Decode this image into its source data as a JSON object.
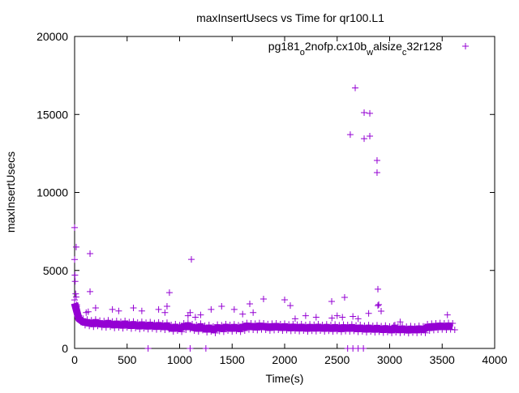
{
  "chart_data": {
    "type": "scatter",
    "title": "maxInsertUsecs vs Time for qr100.L1",
    "xlabel": "Time(s)",
    "ylabel": "maxInsertUsecs",
    "xlim": [
      0,
      4000
    ],
    "ylim": [
      0,
      20000
    ],
    "xticks": [
      0,
      500,
      1000,
      1500,
      2000,
      2500,
      3000,
      3500,
      4000
    ],
    "yticks": [
      0,
      5000,
      10000,
      15000,
      20000
    ],
    "grid": false,
    "legend_position": "top-right",
    "series": [
      {
        "name": "pg181_o2nofp.cx10b_walsize_c32r128",
        "legend_parts": [
          "pg181",
          "o",
          "2nofp.cx10b",
          "w",
          "alsize",
          "c",
          "32r128"
        ],
        "color": "#9400d3",
        "marker": "plus",
        "baseline": {
          "x_start": 0,
          "x_step": 40,
          "y": [
            2900,
            1900,
            1700,
            1650,
            1600,
            1650,
            1580,
            1550,
            1600,
            1520,
            1550,
            1500,
            1560,
            1480,
            1520,
            1450,
            1500,
            1440,
            1480,
            1420,
            1460,
            1400,
            1440,
            1300,
            1350,
            1280,
            1400,
            1450,
            1350,
            1300,
            1380,
            1250,
            1300,
            1200,
            1320,
            1280,
            1350,
            1300,
            1340,
            1280,
            1350,
            1420,
            1400,
            1380,
            1420,
            1400,
            1360,
            1380,
            1400,
            1350,
            1380,
            1330,
            1360,
            1320,
            1350,
            1300,
            1340,
            1310,
            1350,
            1300,
            1340,
            1290,
            1330,
            1280,
            1320,
            1300,
            1330,
            1270,
            1300,
            1250,
            1290,
            1240,
            1280,
            1220,
            1260,
            1200,
            1250,
            1210,
            1240,
            1190,
            1230,
            1200,
            1240,
            1210,
            1350,
            1380,
            1400,
            1420,
            1400,
            1430,
            1400
          ]
        },
        "points": [
          [
            0,
            7750
          ],
          [
            15,
            6500
          ],
          [
            0,
            5700
          ],
          [
            5,
            4300
          ],
          [
            10,
            3500
          ],
          [
            15,
            3300
          ],
          [
            20,
            2800
          ],
          [
            3,
            4700
          ],
          [
            147,
            6080
          ],
          [
            1112,
            5710
          ],
          [
            147,
            3640
          ],
          [
            903,
            3580
          ],
          [
            2672,
            16700
          ],
          [
            2757,
            15120
          ],
          [
            2811,
            15070
          ],
          [
            2625,
            13710
          ],
          [
            2757,
            13450
          ],
          [
            2811,
            13610
          ],
          [
            2880,
            12050
          ],
          [
            2880,
            11270
          ],
          [
            2888,
            3800
          ],
          [
            2888,
            2750
          ],
          [
            2919,
            2390
          ],
          [
            2571,
            3270
          ],
          [
            1799,
            3170
          ],
          [
            2000,
            3120
          ],
          [
            2448,
            3010
          ],
          [
            1668,
            2860
          ],
          [
            2054,
            2750
          ],
          [
            2896,
            2810
          ],
          [
            110,
            2300
          ],
          [
            130,
            2350
          ],
          [
            200,
            2600
          ],
          [
            360,
            2500
          ],
          [
            420,
            2400
          ],
          [
            560,
            2600
          ],
          [
            640,
            2400
          ],
          [
            800,
            2500
          ],
          [
            860,
            2300
          ],
          [
            880,
            2700
          ],
          [
            1080,
            2100
          ],
          [
            1100,
            2300
          ],
          [
            1150,
            2000
          ],
          [
            1200,
            2150
          ],
          [
            1300,
            2500
          ],
          [
            1400,
            2700
          ],
          [
            1600,
            2200
          ],
          [
            1520,
            2500
          ],
          [
            1700,
            2300
          ],
          [
            2100,
            1900
          ],
          [
            2200,
            2100
          ],
          [
            2300,
            2000
          ],
          [
            2450,
            1950
          ],
          [
            2500,
            2100
          ],
          [
            2550,
            2000
          ],
          [
            2650,
            2050
          ],
          [
            2700,
            1900
          ],
          [
            2800,
            2250
          ],
          [
            3050,
            1500
          ],
          [
            3100,
            1700
          ],
          [
            3550,
            2150
          ],
          [
            700,
            0
          ],
          [
            1100,
            0
          ],
          [
            1250,
            0
          ],
          [
            2600,
            0
          ],
          [
            2650,
            0
          ],
          [
            2700,
            0
          ],
          [
            2750,
            0
          ]
        ]
      }
    ]
  }
}
